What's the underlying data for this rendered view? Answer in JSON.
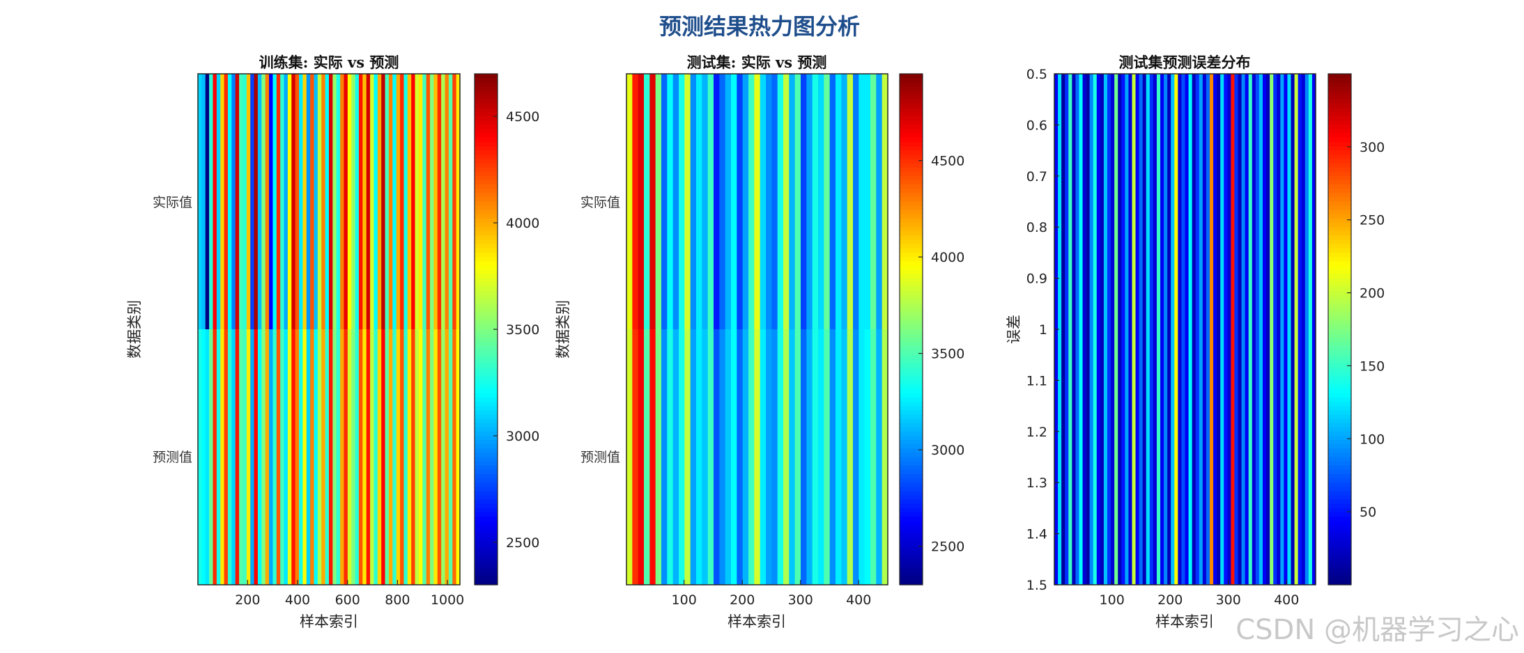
{
  "figure": {
    "title": "预测结果热力图分析",
    "watermark": "CSDN @机器学习之心"
  },
  "chart_data": [
    {
      "type": "heatmap",
      "title": "训练集: 实际 vs 预测",
      "xlabel": "样本索引",
      "ylabel": "数据类别",
      "row_labels": [
        "实际值",
        "预测值"
      ],
      "n_samples": 1050,
      "xticks": [
        200,
        400,
        600,
        800,
        1000
      ],
      "xlim": [
        1,
        1050
      ],
      "clim": [
        2300,
        4700
      ],
      "colorbar_ticks": [
        2500,
        3000,
        3500,
        4000,
        4500
      ],
      "colormap": "jet",
      "bands": {
        "actual": [
          3100,
          3050,
          2300,
          3300,
          4400,
          3100,
          3900,
          4300,
          3200,
          2900,
          4500,
          3350,
          3300,
          3950,
          2750,
          4600,
          3050,
          3500,
          4100,
          2600,
          3200,
          4300,
          3300,
          3000,
          3800,
          4500,
          4200,
          3150,
          3900,
          2950,
          4200,
          3050,
          3650,
          4100,
          3200,
          4500,
          3550,
          3250,
          4100,
          4450,
          3800,
          3550,
          3250,
          4350,
          3950,
          4500,
          3700,
          3200,
          4000,
          4550,
          3350,
          4100,
          3200,
          4000,
          4300,
          3250,
          3950,
          4400,
          3700,
          3850,
          3350,
          4200,
          3500,
          3950,
          4300,
          3600,
          4100,
          3400,
          4250,
          3850
        ],
        "predicted": [
          3250,
          3200,
          3150,
          3450,
          4300,
          3250,
          3850,
          4250,
          3300,
          3100,
          4350,
          3400,
          3350,
          3850,
          3000,
          4400,
          3200,
          3500,
          4000,
          3000,
          3300,
          4200,
          3350,
          3150,
          3750,
          4350,
          4100,
          3250,
          3800,
          3100,
          4100,
          3200,
          3600,
          4000,
          3300,
          4350,
          3500,
          3300,
          4000,
          4300,
          3700,
          3500,
          3300,
          4200,
          3850,
          4350,
          3650,
          3300,
          3900,
          4400,
          3400,
          4000,
          3300,
          3900,
          4200,
          3300,
          3850,
          4250,
          3650,
          3800,
          3400,
          4100,
          3500,
          3850,
          4200,
          3550,
          4000,
          3400,
          4150,
          3800
        ]
      }
    },
    {
      "type": "heatmap",
      "title": "测试集: 实际 vs 预测",
      "xlabel": "样本索引",
      "ylabel": "数据类别",
      "row_labels": [
        "实际值",
        "预测值"
      ],
      "n_samples": 450,
      "xticks": [
        100,
        200,
        300,
        400
      ],
      "xlim": [
        1,
        450
      ],
      "clim": [
        2300,
        4950
      ],
      "colorbar_ticks": [
        2500,
        3000,
        3500,
        4000,
        4500
      ],
      "colormap": "jet",
      "bands": {
        "actual": [
          3900,
          4550,
          4700,
          3400,
          4700,
          3600,
          2900,
          3300,
          3000,
          3350,
          3850,
          3000,
          3250,
          3100,
          3450,
          2700,
          2900,
          3100,
          3300,
          2800,
          3050,
          3450,
          3900,
          3200,
          3000,
          2900,
          3350,
          3800,
          3100,
          3500,
          2800,
          3050,
          3350,
          3200,
          3550,
          2900,
          3250,
          3100,
          3800,
          2950,
          3250,
          3250,
          3550,
          3050,
          3800
        ],
        "predicted": [
          3850,
          4500,
          4650,
          3500,
          4600,
          3600,
          3000,
          3350,
          3100,
          3350,
          3800,
          3050,
          3250,
          3150,
          3450,
          2850,
          3000,
          3150,
          3300,
          2900,
          3100,
          3450,
          3850,
          3250,
          3050,
          3000,
          3350,
          3750,
          3150,
          3500,
          2900,
          3100,
          3350,
          3250,
          3500,
          3000,
          3250,
          3150,
          3750,
          3000,
          3250,
          3300,
          3500,
          3100,
          3750
        ]
      }
    },
    {
      "type": "heatmap",
      "title": "测试集预测误差分布",
      "xlabel": "样本索引",
      "ylabel": "误差",
      "n_samples": 450,
      "xticks": [
        100,
        200,
        300,
        400
      ],
      "xlim": [
        1,
        450
      ],
      "yticks": [
        0.5,
        0.6,
        0.7,
        0.8,
        0.9,
        1,
        1.1,
        1.2,
        1.3,
        1.4,
        1.5
      ],
      "ylim": [
        0.5,
        1.5
      ],
      "clim": [
        0,
        350
      ],
      "colorbar_ticks": [
        50,
        100,
        150,
        200,
        250,
        300
      ],
      "colormap": "jet",
      "bands": {
        "error": [
          40,
          120,
          10,
          60,
          150,
          20,
          80,
          130,
          30,
          15,
          90,
          140,
          40,
          20,
          110,
          60,
          30,
          170,
          20,
          50,
          100,
          30,
          200,
          40,
          80,
          20,
          120,
          60,
          30,
          150,
          40,
          90,
          20,
          110,
          220,
          30,
          70,
          40,
          130,
          20,
          60,
          100,
          30,
          80,
          260,
          40,
          20,
          120,
          50,
          30,
          300,
          60,
          20,
          90,
          40,
          150,
          30,
          70,
          110,
          40,
          20,
          180,
          60,
          30,
          100,
          40,
          120,
          20,
          200,
          50,
          30,
          90,
          140,
          40
        ]
      }
    }
  ]
}
